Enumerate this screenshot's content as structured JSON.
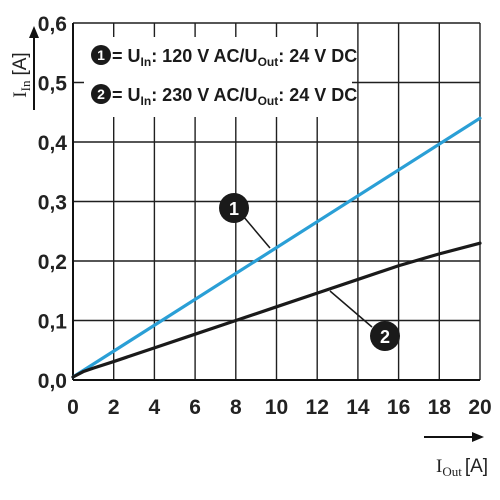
{
  "chart_data": {
    "type": "line",
    "x_ticks": [
      "0",
      "2",
      "4",
      "6",
      "8",
      "10",
      "12",
      "14",
      "16",
      "18",
      "20"
    ],
    "y_ticks": [
      "0,0",
      "0,1",
      "0,2",
      "0,3",
      "0,4",
      "0,5",
      "0,6"
    ],
    "xlim": [
      0,
      20
    ],
    "ylim": [
      0,
      0.6
    ],
    "grid": true,
    "xlabel": {
      "symbol": "I",
      "subscript": "Out",
      "unit": "[A]"
    },
    "ylabel": {
      "symbol": "I",
      "subscript": "In",
      "unit": "[A]"
    },
    "legend_position": "top-left",
    "series": [
      {
        "id": "1",
        "color": "#2a9fd6",
        "legend": {
          "a": " = U",
          "a_sub": "In",
          "b": ": 120 V AC/U",
          "b_sub": "Out",
          "c": ": 24 V DC"
        },
        "x": [
          0,
          20
        ],
        "y": [
          0.005,
          0.44
        ]
      },
      {
        "id": "2",
        "color": "#1a1a1a",
        "legend": {
          "a": " = U",
          "a_sub": "In",
          "b": ": 230 V AC/U",
          "b_sub": "Out",
          "c": ": 24 V DC"
        },
        "x": [
          0,
          0.5,
          1,
          2,
          4,
          6,
          8,
          10,
          12,
          14,
          16,
          18,
          20
        ],
        "y": [
          0.005,
          0.014,
          0.02,
          0.031,
          0.054,
          0.077,
          0.1,
          0.123,
          0.146,
          0.169,
          0.192,
          0.212,
          0.23
        ]
      }
    ]
  }
}
